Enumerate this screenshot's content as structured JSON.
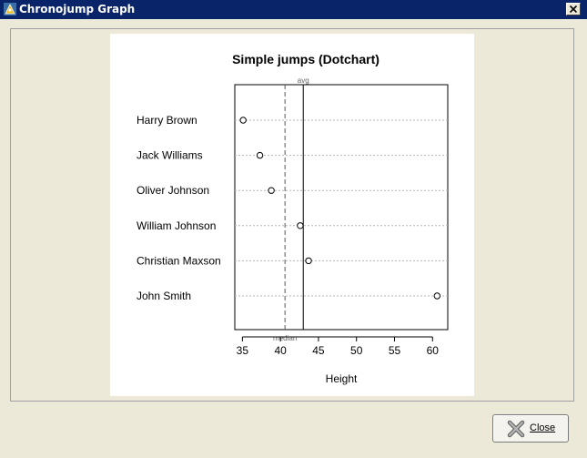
{
  "window": {
    "title": "Chronojump Graph",
    "close_glyph": "✕"
  },
  "footer": {
    "close_label": "Close"
  },
  "chart_data": {
    "type": "scatter",
    "title": "Simple jumps (Dotchart)",
    "xlabel": "Height",
    "ylabel": "",
    "xlim": [
      34,
      62
    ],
    "xticks": [
      35,
      40,
      45,
      50,
      55,
      60
    ],
    "grid": true,
    "categories": [
      "Harry Brown",
      "Jack Williams",
      "Oliver Johnson",
      "William Johnson",
      "Christian Maxson",
      "John Smith"
    ],
    "values": [
      35.1,
      37.3,
      38.8,
      42.6,
      43.7,
      60.6
    ],
    "reference_lines": [
      {
        "label": "avg",
        "value": 43.0,
        "style": "solid"
      },
      {
        "label": "median",
        "value": 40.6,
        "style": "dashed"
      }
    ]
  }
}
